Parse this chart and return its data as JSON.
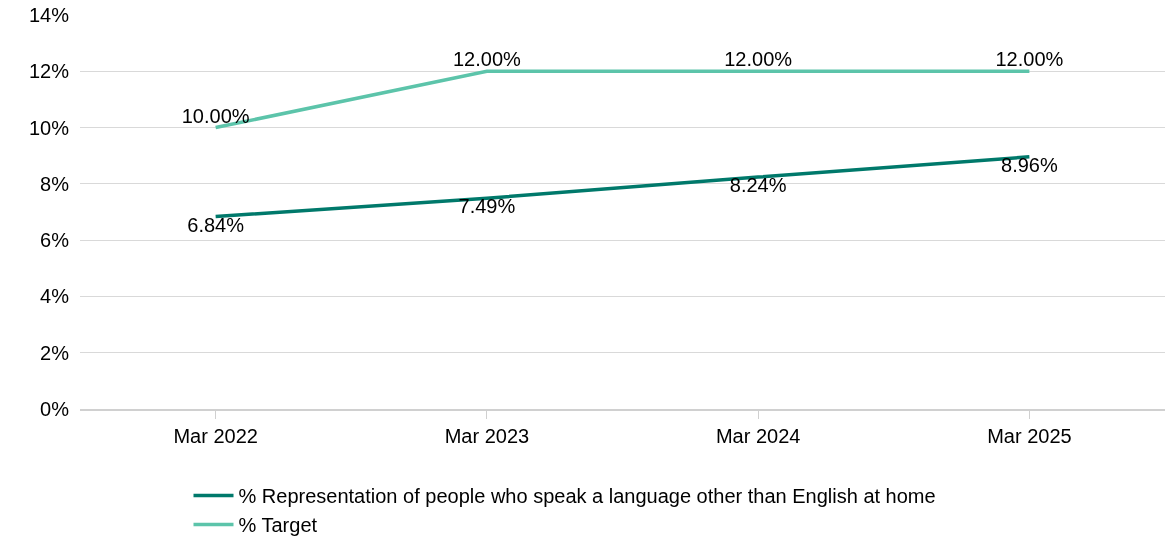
{
  "chart_data": {
    "type": "line",
    "categories": [
      "Mar 2022",
      "Mar 2023",
      "Mar 2024",
      "Mar 2025"
    ],
    "series": [
      {
        "name": "% Representation of people who speak a language other than English at home",
        "color": "#00796b",
        "values": [
          6.84,
          7.49,
          8.24,
          8.96
        ],
        "value_labels": [
          "6.84%",
          "7.49%",
          "8.24%",
          "8.96%"
        ]
      },
      {
        "name": "% Target",
        "color": "#5cc4aa",
        "values": [
          10,
          12,
          12,
          12
        ],
        "value_labels": [
          "10.00%",
          "12.00%",
          "12.00%",
          "12.00%"
        ]
      }
    ],
    "ylim": [
      0,
      14
    ],
    "yticks": [
      {
        "value": 0,
        "label": "0%"
      },
      {
        "value": 2,
        "label": "2%"
      },
      {
        "value": 4,
        "label": "4%"
      },
      {
        "value": 6,
        "label": "6%"
      },
      {
        "value": 8,
        "label": "8%"
      },
      {
        "value": 10,
        "label": "10%"
      },
      {
        "value": 12,
        "label": "12%"
      },
      {
        "value": 14,
        "label": "14%"
      }
    ],
    "grid": "y",
    "legend": "bottom",
    "marker": "none",
    "line_style": "solid"
  }
}
